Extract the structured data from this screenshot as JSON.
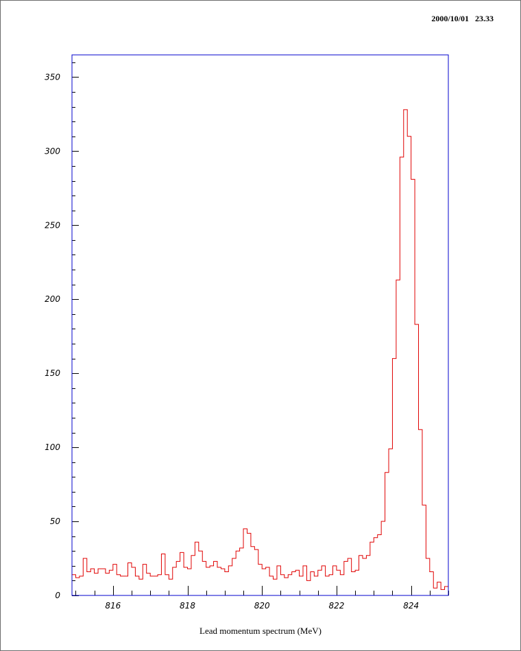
{
  "timestamp": "2000/10/01   23.33",
  "colors": {
    "histogram": "#e00000",
    "axes_frame": "#0000cc"
  },
  "chart_data": {
    "type": "histogram",
    "xlabel": "Lead momentum spectrum (MeV)",
    "ylabel": "",
    "xlim": [
      814.9,
      825.0
    ],
    "ylim": [
      0,
      365
    ],
    "xticks": [
      816,
      818,
      820,
      822,
      824
    ],
    "yticks": [
      0,
      50,
      100,
      150,
      200,
      250,
      300,
      350
    ],
    "x_minor_step": 0.5,
    "y_minor_step": 10,
    "bin_start": 814.9,
    "bin_width": 0.1,
    "values": [
      14,
      12,
      13,
      25,
      16,
      18,
      15,
      18,
      18,
      15,
      17,
      21,
      14,
      13,
      13,
      22,
      19,
      13,
      11,
      21,
      15,
      13,
      13,
      14,
      28,
      14,
      11,
      19,
      23,
      29,
      19,
      18,
      27,
      36,
      30,
      23,
      19,
      20,
      23,
      19,
      18,
      16,
      20,
      25,
      30,
      32,
      45,
      42,
      33,
      31,
      21,
      18,
      19,
      13,
      11,
      20,
      14,
      12,
      14,
      16,
      17,
      13,
      20,
      10,
      16,
      13,
      17,
      20,
      13,
      14,
      20,
      17,
      14,
      23,
      25,
      16,
      17,
      27,
      25,
      27,
      36,
      39,
      41,
      50,
      83,
      99,
      160,
      213,
      296,
      328,
      310,
      281,
      183,
      112,
      61,
      25,
      16,
      5,
      9,
      4,
      6
    ]
  }
}
